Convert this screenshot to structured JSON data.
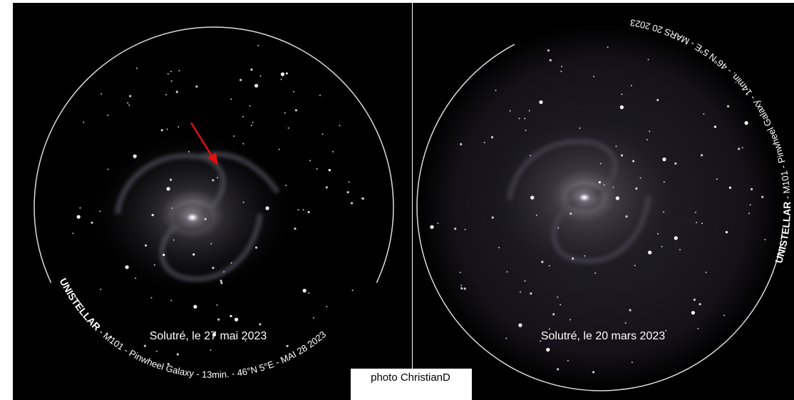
{
  "left": {
    "brand": "UNISTELLAR",
    "curve_text": " - M101 - Pinwheel Galaxy - 13min. - 46°N 5°E - MAI 28 2023",
    "caption": "Solutré, le 27 mai 2023"
  },
  "right": {
    "brand": "UNISTELLAR",
    "curve_text": " - M101 - Pinwheel Galaxy - 14min. - 46°N 5°E - MARS 20 2023",
    "caption": "Solutré, le 20 mars 2023"
  },
  "credit": "photo ChristianD"
}
